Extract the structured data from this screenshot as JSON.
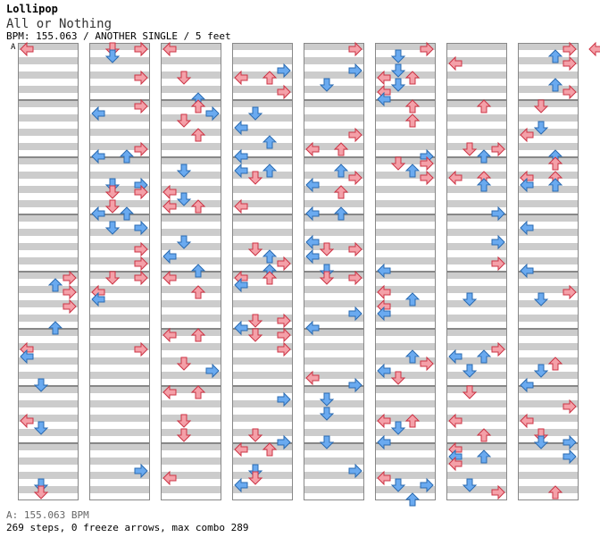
{
  "header": {
    "song_title": "Lollipop",
    "subtitle": "All or Nothing",
    "meta": "BPM: 155.063 / ANOTHER SINGLE / 5 feet",
    "marker": "A"
  },
  "footer": {
    "bpm_line": "A: 155.063 BPM",
    "stats_line": "269 steps, 0 freeze arrows, max combo 289"
  },
  "colors": {
    "normal_arrow": "#f4a0a8",
    "normal_stroke": "#cc3344",
    "blue_arrow": "#6aaaf0",
    "blue_stroke": "#2a6ab0",
    "band_gray": "#cccccc",
    "border": "#888888"
  },
  "chart_data": {
    "type": "table",
    "columns": 8,
    "measures_per_column": 8,
    "lanes": [
      "left",
      "down",
      "up",
      "right"
    ],
    "notes_sample": [
      {
        "col": 0,
        "measure": 0,
        "beat": 0,
        "lane": "left",
        "blue": false
      },
      {
        "col": 1,
        "measure": 0,
        "beat": 0,
        "lane": "right",
        "blue": false
      },
      {
        "col": 1,
        "measure": 0,
        "beat": 1,
        "lane": "down",
        "blue": true
      },
      {
        "col": 2,
        "measure": 0,
        "beat": 0,
        "lane": "left",
        "blue": false
      },
      {
        "col": 2,
        "measure": 0,
        "beat": 2,
        "lane": "left",
        "blue": true
      },
      {
        "col": 7,
        "measure": 0,
        "beat": 0,
        "lane": "right",
        "blue": false
      }
    ]
  }
}
